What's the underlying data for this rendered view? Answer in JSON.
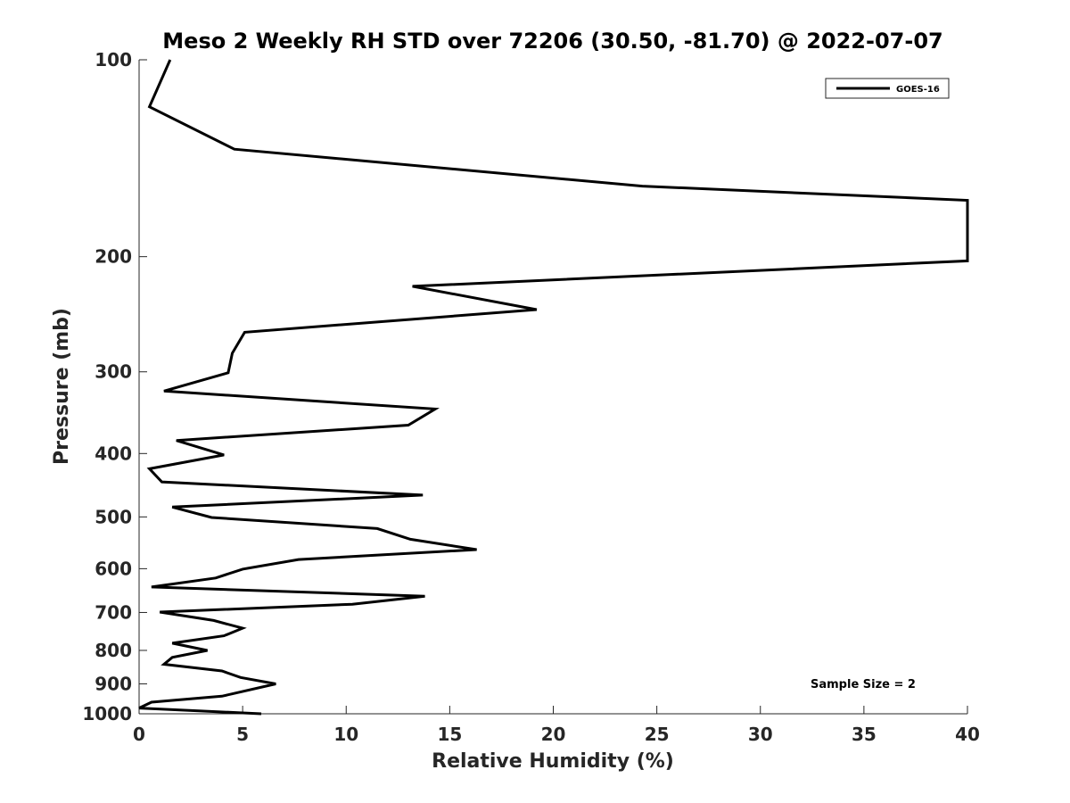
{
  "chart_data": {
    "type": "line",
    "title": "Meso 2 Weekly RH STD over 72206 (30.50, -81.70) @ 2022-07-07",
    "xlabel": "Relative Humidity (%)",
    "ylabel": "Pressure (mb)",
    "xlim": [
      0,
      40
    ],
    "ylim": [
      100,
      1000
    ],
    "y_scale": "log",
    "y_reversed": true,
    "grid": false,
    "legend_position": "top-right",
    "x_ticks": [
      0,
      5,
      10,
      15,
      20,
      25,
      30,
      35,
      40
    ],
    "y_ticks": [
      100,
      200,
      300,
      400,
      500,
      600,
      700,
      800,
      900,
      1000
    ],
    "annotation": "Sample Size = 2",
    "series": [
      {
        "name": "GOES-16",
        "color": "#000000",
        "x": [
          1.5,
          0.5,
          4.6,
          24.3,
          40,
          40,
          13.2,
          19.2,
          5.1,
          4.5,
          4.3,
          1.2,
          14.3,
          13.0,
          1.8,
          4.1,
          0.5,
          1.1,
          13.7,
          1.6,
          3.5,
          11.5,
          13.1,
          16.3,
          7.7,
          5.0,
          3.7,
          0.6,
          13.8,
          10.3,
          1.0,
          3.6,
          5.0,
          4.1,
          1.6,
          3.3,
          1.6,
          1.2,
          4.0,
          4.9,
          6.6,
          4.0,
          0.6,
          0.0,
          5.9
        ],
        "y": [
          100,
          118,
          137,
          156,
          164,
          203,
          222,
          241,
          261,
          281,
          301,
          321,
          342,
          362,
          382,
          402,
          422,
          442,
          463,
          483,
          501,
          521,
          541,
          561,
          581,
          601,
          620,
          640,
          661,
          680,
          699,
          720,
          740,
          760,
          780,
          800,
          820,
          840,
          860,
          880,
          900,
          940,
          960,
          980,
          1000
        ]
      }
    ]
  }
}
